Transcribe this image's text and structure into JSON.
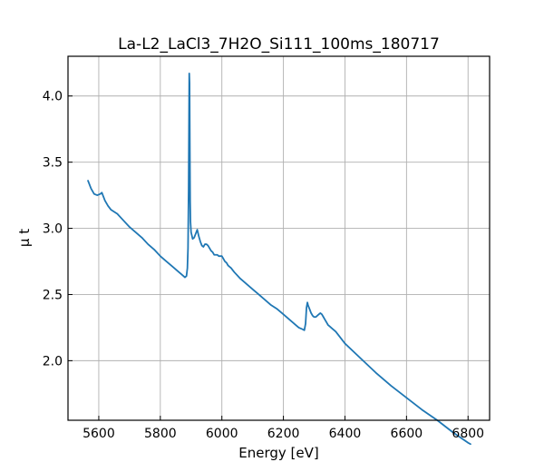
{
  "chart_data": {
    "type": "line",
    "title": "La-L2_LaCl3_7H2O_Si111_100ms_180717",
    "xlabel": "Energy [eV]",
    "ylabel": "μ t",
    "xlim": [
      5500,
      6870
    ],
    "ylim": [
      1.55,
      4.3
    ],
    "xticks": [
      5600,
      5800,
      6000,
      6200,
      6400,
      6600,
      6800
    ],
    "yticks": [
      2.0,
      2.5,
      3.0,
      3.5,
      4.0
    ],
    "xtick_labels": [
      "5600",
      "5800",
      "6000",
      "6200",
      "6400",
      "6600",
      "6800"
    ],
    "ytick_labels": [
      "2.0",
      "2.5",
      "3.0",
      "3.5",
      "4.0"
    ],
    "grid": true,
    "tick_direction": "in",
    "series": [
      {
        "color": "#1f77b4",
        "x": [
          5565,
          5575,
          5585,
          5595,
          5605,
          5610,
          5615,
          5620,
          5630,
          5640,
          5660,
          5680,
          5700,
          5720,
          5740,
          5760,
          5780,
          5800,
          5820,
          5840,
          5860,
          5870,
          5880,
          5885,
          5888,
          5890,
          5892,
          5894,
          5895,
          5896,
          5897,
          5898,
          5900,
          5902,
          5905,
          5910,
          5915,
          5920,
          5925,
          5930,
          5935,
          5940,
          5945,
          5950,
          5955,
          5960,
          5965,
          5970,
          5975,
          5980,
          5985,
          5990,
          5995,
          6000,
          6005,
          6010,
          6015,
          6020,
          6030,
          6040,
          6060,
          6080,
          6100,
          6120,
          6140,
          6160,
          6180,
          6200,
          6220,
          6240,
          6250,
          6260,
          6268,
          6272,
          6275,
          6278,
          6280,
          6285,
          6290,
          6295,
          6300,
          6305,
          6310,
          6315,
          6320,
          6325,
          6330,
          6335,
          6340,
          6345,
          6350,
          6355,
          6360,
          6370,
          6380,
          6390,
          6400,
          6450,
          6500,
          6550,
          6600,
          6650,
          6700,
          6750,
          6800,
          6808
        ],
        "y": [
          3.36,
          3.3,
          3.26,
          3.25,
          3.26,
          3.27,
          3.24,
          3.21,
          3.17,
          3.14,
          3.11,
          3.06,
          3.01,
          2.97,
          2.93,
          2.88,
          2.84,
          2.79,
          2.75,
          2.71,
          2.67,
          2.65,
          2.63,
          2.64,
          2.7,
          2.85,
          3.3,
          4.17,
          4.1,
          3.6,
          3.2,
          3.05,
          2.97,
          2.95,
          2.92,
          2.93,
          2.96,
          2.99,
          2.94,
          2.9,
          2.87,
          2.86,
          2.88,
          2.88,
          2.87,
          2.85,
          2.83,
          2.82,
          2.8,
          2.8,
          2.8,
          2.79,
          2.79,
          2.79,
          2.77,
          2.75,
          2.74,
          2.72,
          2.7,
          2.67,
          2.62,
          2.58,
          2.54,
          2.5,
          2.46,
          2.42,
          2.39,
          2.35,
          2.31,
          2.27,
          2.25,
          2.24,
          2.23,
          2.28,
          2.4,
          2.44,
          2.42,
          2.39,
          2.36,
          2.34,
          2.33,
          2.33,
          2.34,
          2.35,
          2.36,
          2.35,
          2.33,
          2.31,
          2.29,
          2.27,
          2.26,
          2.25,
          2.24,
          2.22,
          2.19,
          2.16,
          2.13,
          2.02,
          1.91,
          1.81,
          1.72,
          1.63,
          1.55,
          1.46,
          1.38,
          1.37
        ]
      }
    ]
  }
}
